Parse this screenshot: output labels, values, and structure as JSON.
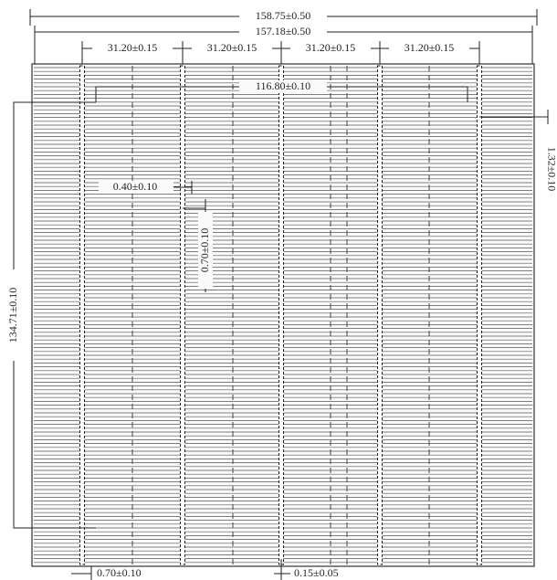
{
  "dimensions": {
    "overall_width": "158.75±0.50",
    "inner_width": "157.18±0.50",
    "busbar_pitch": [
      "31.20±0.15",
      "31.20±0.15",
      "31.20±0.15",
      "31.20±0.15"
    ],
    "busbar_span": "116.80±0.10",
    "right_offset": "1.32±0.10",
    "finger_width": "0.40±0.10",
    "finger_length": "0.70±0.10",
    "height": "134.71±0.10",
    "bottom_pad": "0.70±0.10",
    "bottom_line": "0.15±0.05"
  }
}
